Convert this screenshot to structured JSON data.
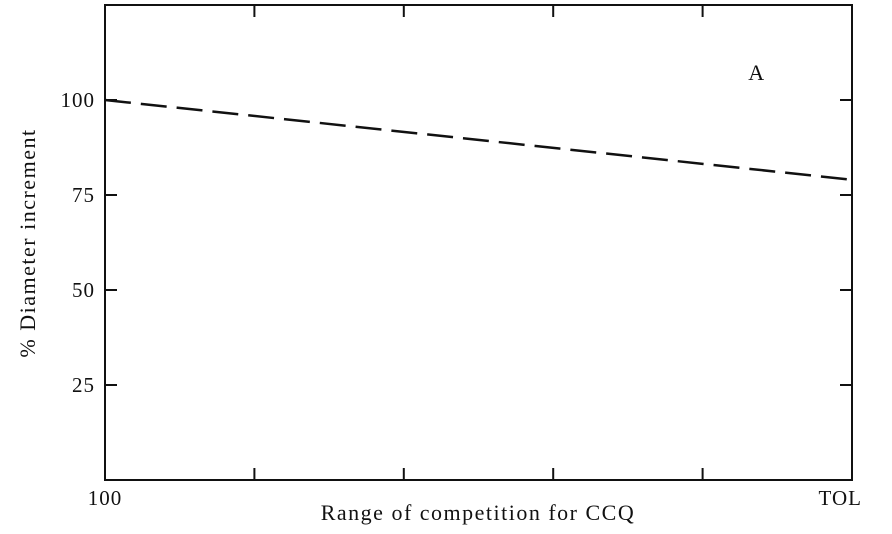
{
  "chart_data": {
    "type": "line",
    "xlabel": "Range of competition for CCQ",
    "ylabel": "% Diameter increment",
    "annotation": "A",
    "x": [
      0,
      5
    ],
    "series": [
      {
        "values": [
          100,
          79
        ],
        "color": "#111111",
        "dashed": true
      }
    ],
    "xlim": [
      0,
      5
    ],
    "xticks": [
      {
        "value": 0,
        "label": "100"
      },
      {
        "value": 1,
        "label": null
      },
      {
        "value": 2,
        "label": null
      },
      {
        "value": 3,
        "label": null
      },
      {
        "value": 4,
        "label": null
      },
      {
        "value": 5,
        "label": "TOL"
      }
    ],
    "ylim": [
      0,
      125
    ],
    "yticks": [
      25,
      50,
      75,
      100
    ]
  }
}
